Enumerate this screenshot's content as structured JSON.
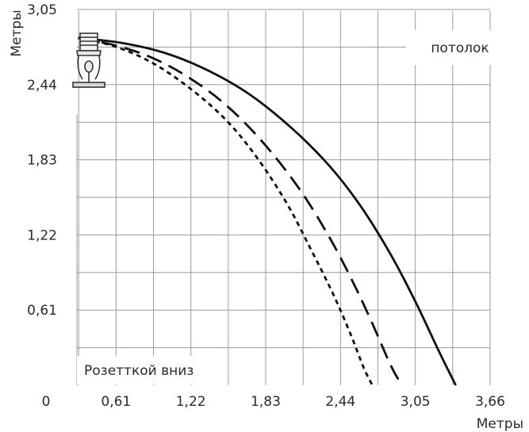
{
  "chart_data": {
    "type": "line",
    "xlabel": "Метры",
    "ylabel": "Метры",
    "xlim": [
      0,
      3.66
    ],
    "ylim": [
      0,
      3.05
    ],
    "x_ticks": [
      "0",
      "0,61",
      "1,22",
      "1,83",
      "2,44",
      "3,05",
      "3,66"
    ],
    "y_ticks": [
      "3,05",
      "2,44",
      "1,83",
      "1,22",
      "0,61"
    ],
    "grid": true,
    "annotations": {
      "ceiling": "потолок",
      "orientation": "Розетткой вниз"
    },
    "series": [
      {
        "style": "solid",
        "x": [
          0.3,
          0.65,
          1.0,
          1.35,
          1.7,
          2.05,
          2.35,
          2.6,
          2.85,
          3.05,
          3.25,
          3.38
        ],
        "y": [
          2.82,
          2.78,
          2.7,
          2.56,
          2.36,
          2.08,
          1.78,
          1.46,
          1.06,
          0.68,
          0.26,
          0.0
        ]
      },
      {
        "style": "dashed",
        "x": [
          0.3,
          0.6,
          0.9,
          1.2,
          1.5,
          1.8,
          2.1,
          2.35,
          2.55,
          2.7,
          2.85,
          2.94
        ],
        "y": [
          2.82,
          2.76,
          2.66,
          2.5,
          2.28,
          1.98,
          1.6,
          1.2,
          0.82,
          0.5,
          0.16,
          0.0
        ]
      },
      {
        "style": "dotted",
        "x": [
          0.3,
          0.6,
          0.9,
          1.2,
          1.5,
          1.75,
          2.0,
          2.2,
          2.38,
          2.52,
          2.63,
          2.7
        ],
        "y": [
          2.82,
          2.75,
          2.62,
          2.42,
          2.16,
          1.86,
          1.48,
          1.1,
          0.74,
          0.42,
          0.14,
          0.0
        ]
      }
    ]
  }
}
